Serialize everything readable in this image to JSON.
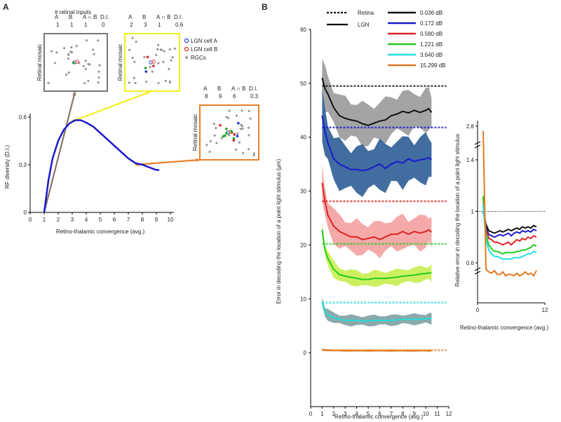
{
  "panel_a": {
    "letter": "A",
    "xlabel": "Retino-thalamic convergence (avg.)",
    "ylabel": "RF diversity (D.I.)",
    "xlim": [
      0,
      10
    ],
    "ylim": [
      0,
      0.6
    ],
    "xticks": [
      "0",
      "1",
      "2",
      "3",
      "4",
      "5",
      "6",
      "7",
      "8",
      "9",
      "10"
    ],
    "yticks": [
      "0",
      "0.3",
      "0.6"
    ],
    "curve": {
      "color": "#1a1acc",
      "x": [
        1.0,
        1.3,
        1.6,
        2.0,
        2.4,
        2.8,
        3.2,
        3.6,
        4.0,
        4.5,
        5.0,
        5.5,
        6.0,
        6.5,
        7.0,
        7.5,
        8.0,
        8.3,
        8.6,
        8.9,
        9.2
      ],
      "y": [
        0.0,
        0.2,
        0.34,
        0.45,
        0.52,
        0.56,
        0.58,
        0.58,
        0.565,
        0.54,
        0.5,
        0.46,
        0.42,
        0.38,
        0.34,
        0.31,
        0.3,
        0.29,
        0.28,
        0.27,
        0.265
      ]
    },
    "insets_header": "# retinal inputs",
    "col_labels": [
      "A",
      "B",
      "A ∩ B",
      "D.I."
    ],
    "retinal_mosaic_label": "Retinal mosaic",
    "insets": [
      {
        "values": [
          "1",
          "1",
          "1",
          "0"
        ],
        "border": "#777777",
        "arrow_to": [
          1,
          0.0
        ]
      },
      {
        "values": [
          "2",
          "3",
          "1",
          "0.6"
        ],
        "border": "#f0f020",
        "arrow_to": [
          2.9,
          0.57
        ]
      },
      {
        "values": [
          "8",
          "9",
          "6",
          "0.3"
        ],
        "border": "#e8802a",
        "arrow_to": [
          7.5,
          0.3
        ]
      }
    ],
    "legend": [
      {
        "label": "LGN cell A",
        "color": "#2233cc"
      },
      {
        "label": "LGN cell B",
        "color": "#dd2222"
      },
      {
        "label": "RGCs",
        "color": "#999999"
      }
    ]
  },
  "panel_b": {
    "letter": "B",
    "legend_style": [
      {
        "label": "Retina",
        "style": "dotted"
      },
      {
        "label": "LGN",
        "style": "solid"
      }
    ]
  },
  "chart_data": [
    {
      "type": "line",
      "title": "",
      "xlabel": "Retino-thalamic convergence (avg.)",
      "ylabel": "Error in decoding the location of a point light stimulus (μm)",
      "xlim": [
        0,
        12
      ],
      "ylim": [
        -10,
        60
      ],
      "xticks": [
        "0",
        "1",
        "2",
        "3",
        "4",
        "5",
        "6",
        "7",
        "8",
        "9",
        "10",
        "11",
        "12"
      ],
      "yticks": [
        "0",
        "10",
        "20",
        "30",
        "40",
        "50",
        "60"
      ],
      "x": [
        1.0,
        1.25,
        1.5,
        2,
        2.5,
        3,
        3.5,
        4,
        4.5,
        5,
        5.5,
        6,
        6.5,
        7,
        7.5,
        8,
        8.5,
        9,
        9.5,
        10,
        10.25,
        10.5
      ],
      "series": [
        {
          "name": "0.036 dB",
          "color": "#111111",
          "band": "#9a9a9a",
          "retina": 49.5,
          "band_width": 3.5,
          "values": [
            51,
            49,
            48,
            45.5,
            44,
            43.5,
            43.2,
            43,
            42.5,
            42.2,
            42.6,
            43,
            43.2,
            44,
            44.3,
            44.8,
            44.5,
            45,
            44.6,
            45,
            45.3,
            44.6
          ]
        },
        {
          "name": "0.172 dB",
          "color": "#1a1acc",
          "band": "#2c5d96",
          "retina": 41.8,
          "band_width": 4,
          "values": [
            44,
            41,
            39,
            36,
            35,
            34.5,
            34,
            34,
            33.8,
            34,
            34.5,
            35,
            34.2,
            35,
            35.5,
            35.2,
            36,
            35.5,
            35.8,
            36,
            36.2,
            35.8
          ]
        },
        {
          "name": "0.580 dB",
          "color": "#dd2222",
          "band": "#f4a0a0",
          "retina": 28.1,
          "band_width": 2.8,
          "values": [
            31.5,
            28,
            25.5,
            23.5,
            22.5,
            22,
            21.5,
            21.5,
            21,
            21.2,
            21.5,
            21,
            21.5,
            22,
            22,
            22.5,
            22,
            22.5,
            22.2,
            22.5,
            22.8,
            22.4
          ]
        },
        {
          "name": "1.221 dB",
          "color": "#22cc22",
          "band": "#c8ee50",
          "retina": 20.2,
          "band_width": 1.3,
          "values": [
            22.8,
            19,
            17.5,
            15.5,
            14.5,
            14.2,
            14,
            13.8,
            13.6,
            13.6,
            13.8,
            13.8,
            13.8,
            13.9,
            14,
            14.2,
            14.3,
            14.4,
            14.6,
            14.7,
            14.8,
            14.8
          ]
        },
        {
          "name": "3.640 dB",
          "color": "#22dddd",
          "band": "#80a0a0",
          "retina": 9.3,
          "band_width": 0.9,
          "values": [
            9.5,
            7.5,
            7,
            6.5,
            6.2,
            6,
            6,
            6,
            5.9,
            5.9,
            6,
            6,
            6,
            6,
            6.1,
            6.2,
            6.2,
            6.2,
            6.2,
            6.3,
            6.4,
            6.3
          ]
        },
        {
          "name": "15.299 dB",
          "color": "#e07a20",
          "band": "#e07a20",
          "retina": 0.45,
          "band_width": 0.15,
          "values": [
            0.6,
            0.5,
            0.45,
            0.4,
            0.4,
            0.38,
            0.38,
            0.38,
            0.38,
            0.38,
            0.38,
            0.38,
            0.38,
            0.38,
            0.38,
            0.38,
            0.38,
            0.38,
            0.38,
            0.38,
            0.38,
            0.38
          ]
        }
      ]
    },
    {
      "type": "line",
      "title": "",
      "xlabel": "Retino-thalamic convergence (avg.)",
      "ylabel": "Relative error in decoding the location of a point light stimulus",
      "xlim": [
        0,
        12
      ],
      "xticks": [
        "0",
        "12"
      ],
      "yticks": [
        "0.6",
        "1",
        "1.4",
        "2.8"
      ],
      "reference": 1,
      "x": [
        1.0,
        1.5,
        2,
        2.5,
        3,
        3.5,
        4,
        4.5,
        5,
        5.5,
        6,
        6.5,
        7,
        7.5,
        8,
        8.5,
        9,
        9.5,
        10,
        10.5
      ],
      "series": [
        {
          "name": "0.036 dB",
          "color": "#111111",
          "values": [
            1,
            0.9,
            0.85,
            0.84,
            0.83,
            0.84,
            0.85,
            0.84,
            0.85,
            0.86,
            0.85,
            0.86,
            0.87,
            0.86,
            0.88,
            0.87,
            0.88,
            0.87,
            0.89,
            0.88
          ]
        },
        {
          "name": "0.172 dB",
          "color": "#1a1acc",
          "values": [
            1.05,
            0.88,
            0.82,
            0.81,
            0.8,
            0.81,
            0.82,
            0.81,
            0.82,
            0.83,
            0.81,
            0.83,
            0.84,
            0.83,
            0.85,
            0.84,
            0.85,
            0.84,
            0.86,
            0.85
          ]
        },
        {
          "name": "0.580 dB",
          "color": "#dd2222",
          "values": [
            1.1,
            0.86,
            0.79,
            0.78,
            0.76,
            0.76,
            0.75,
            0.74,
            0.75,
            0.76,
            0.74,
            0.76,
            0.78,
            0.77,
            0.79,
            0.78,
            0.8,
            0.79,
            0.81,
            0.8
          ]
        },
        {
          "name": "1.221 dB",
          "color": "#22cc22",
          "values": [
            1.12,
            0.82,
            0.74,
            0.71,
            0.69,
            0.69,
            0.68,
            0.67,
            0.68,
            0.68,
            0.68,
            0.68,
            0.69,
            0.69,
            0.7,
            0.7,
            0.71,
            0.72,
            0.74,
            0.73
          ]
        },
        {
          "name": "3.640 dB",
          "color": "#22dddd",
          "values": [
            1.05,
            0.78,
            0.7,
            0.67,
            0.65,
            0.65,
            0.64,
            0.63,
            0.63,
            0.63,
            0.63,
            0.64,
            0.64,
            0.64,
            0.65,
            0.66,
            0.67,
            0.67,
            0.69,
            0.68
          ]
        },
        {
          "name": "15.299 dB",
          "color": "#e07a20",
          "values": [
            2.6,
            0.55,
            0.53,
            0.52,
            0.54,
            0.51,
            0.51,
            0.53,
            0.5,
            0.51,
            0.51,
            0.5,
            0.52,
            0.5,
            0.51,
            0.53,
            0.51,
            0.52,
            0.5,
            0.54
          ]
        }
      ]
    }
  ]
}
